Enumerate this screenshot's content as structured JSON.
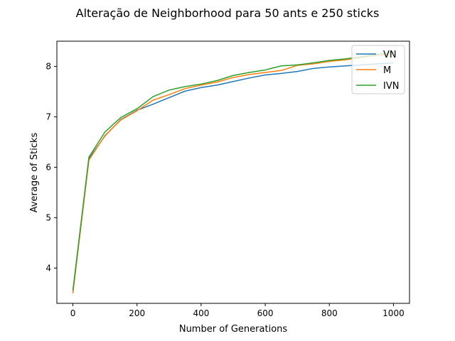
{
  "chart_data": {
    "type": "line",
    "title": "Alteração de Neighborhood para 50 ants e 250 sticks",
    "xlabel": "Number of Generations",
    "ylabel": "Average of Sticks",
    "xlim": [
      -50,
      1050
    ],
    "ylim": [
      3.3,
      8.5
    ],
    "xticks": [
      0,
      200,
      400,
      600,
      800,
      1000
    ],
    "yticks": [
      4,
      5,
      6,
      7,
      8
    ],
    "grid": false,
    "legend_position": "top-right",
    "x": [
      0,
      50,
      100,
      150,
      200,
      250,
      300,
      350,
      400,
      450,
      500,
      550,
      600,
      650,
      700,
      750,
      800,
      850,
      900,
      950,
      1000
    ],
    "series": [
      {
        "name": "VN",
        "color": "#1f77b4",
        "values": [
          3.53,
          6.17,
          6.62,
          6.95,
          7.13,
          7.25,
          7.38,
          7.51,
          7.58,
          7.63,
          7.7,
          7.77,
          7.83,
          7.86,
          7.9,
          7.96,
          7.99,
          8.01,
          8.03,
          8.05,
          8.07
        ]
      },
      {
        "name": "M",
        "color": "#ff7f0e",
        "values": [
          3.5,
          6.14,
          6.63,
          6.94,
          7.12,
          7.33,
          7.44,
          7.56,
          7.63,
          7.69,
          7.78,
          7.84,
          7.88,
          7.92,
          8.02,
          8.05,
          8.1,
          8.13,
          8.18,
          8.22,
          8.25
        ]
      },
      {
        "name": "IVN",
        "color": "#2ca02c",
        "values": [
          3.56,
          6.2,
          6.7,
          6.99,
          7.16,
          7.4,
          7.53,
          7.6,
          7.65,
          7.72,
          7.82,
          7.88,
          7.93,
          8.01,
          8.03,
          8.07,
          8.12,
          8.15,
          8.19,
          8.24,
          8.28
        ]
      }
    ]
  }
}
